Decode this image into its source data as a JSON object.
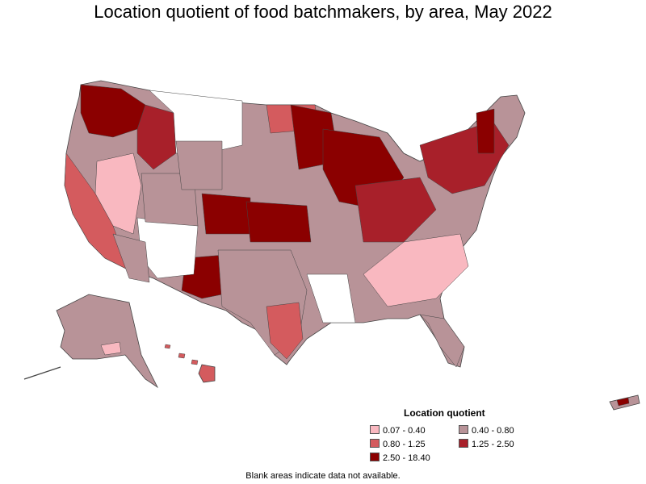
{
  "title": "Location quotient of food batchmakers, by area, May 2022",
  "legend": {
    "title": "Location quotient",
    "items": [
      {
        "label": "0.07 - 0.40",
        "color": "#f9b8c0"
      },
      {
        "label": "0.40 - 0.80",
        "color": "#b89398"
      },
      {
        "label": "0.80 - 1.25",
        "color": "#d45b5e"
      },
      {
        "label": "1.25 - 2.50",
        "color": "#a8202a"
      },
      {
        "label": "2.50 - 18.40",
        "color": "#8b0000"
      }
    ]
  },
  "footnote": "Blank areas indicate data not available."
}
